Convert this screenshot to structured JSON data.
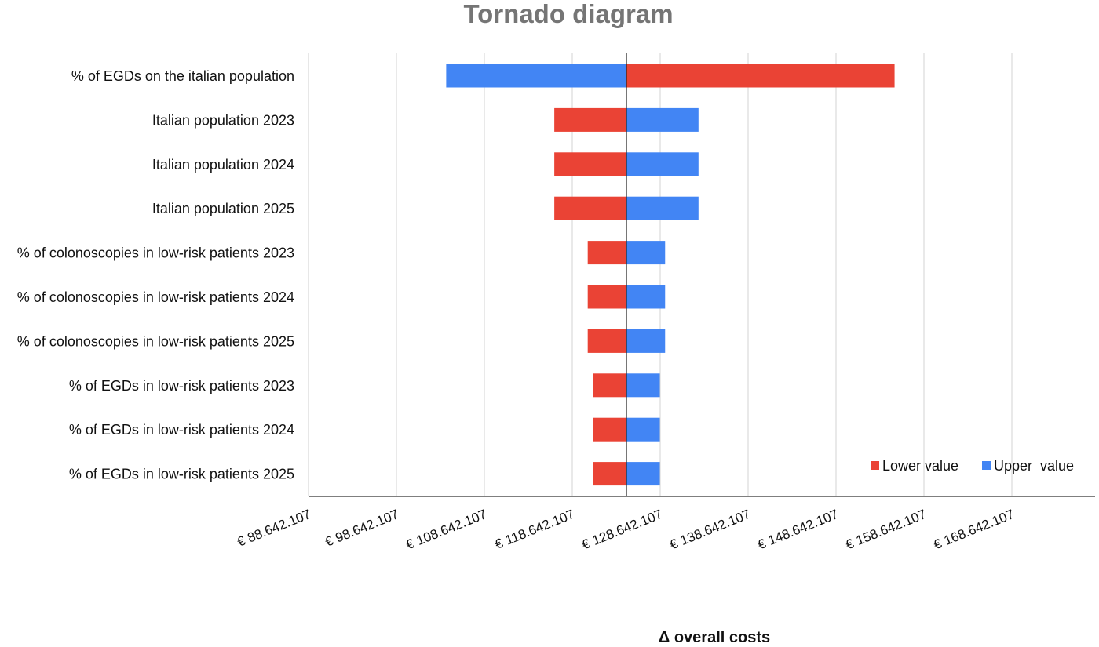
{
  "chart_data": {
    "type": "bar",
    "orientation": "horizontal",
    "subtype": "tornado",
    "title": "Tornado diagram",
    "xlabel": "Δ overall costs",
    "ylabel": "",
    "base_value": 124800000,
    "xlim": [
      88642107,
      177642107
    ],
    "xticks": [
      88642107,
      98642107,
      108642107,
      118642107,
      128642107,
      138642107,
      148642107,
      158642107,
      168642107
    ],
    "xtick_labels": [
      "€ 88.642.107",
      "€ 98.642.107",
      "€ 108.642.107",
      "€ 118.642.107",
      "€ 128.642.107",
      "€ 138.642.107",
      "€ 148.642.107",
      "€ 158.642.107",
      "€ 168.642.107"
    ],
    "grid": "vertical",
    "legend_position": "bottom-right",
    "categories": [
      "% of EGDs on the italian population",
      "Italian population 2023",
      "Italian population 2024",
      "Italian population 2025",
      "% of colonoscopies in low-risk patients 2023",
      "% of colonoscopies in low-risk patients 2024",
      "% of colonoscopies in low-risk patients 2025",
      "% of EGDs in low-risk patients 2023",
      "% of EGDs in low-risk patients 2024",
      "% of EGDs in low-risk patients 2025"
    ],
    "series": [
      {
        "name": "Lower value",
        "color": "#EA4335",
        "values": [
          155300000,
          116600000,
          116600000,
          116600000,
          120400000,
          120400000,
          120400000,
          121000000,
          121000000,
          121000000
        ]
      },
      {
        "name": "Upper  value",
        "color": "#4285F4",
        "values": [
          104300000,
          133000000,
          133000000,
          133000000,
          129200000,
          129200000,
          129200000,
          128600000,
          128600000,
          128600000
        ]
      }
    ]
  }
}
